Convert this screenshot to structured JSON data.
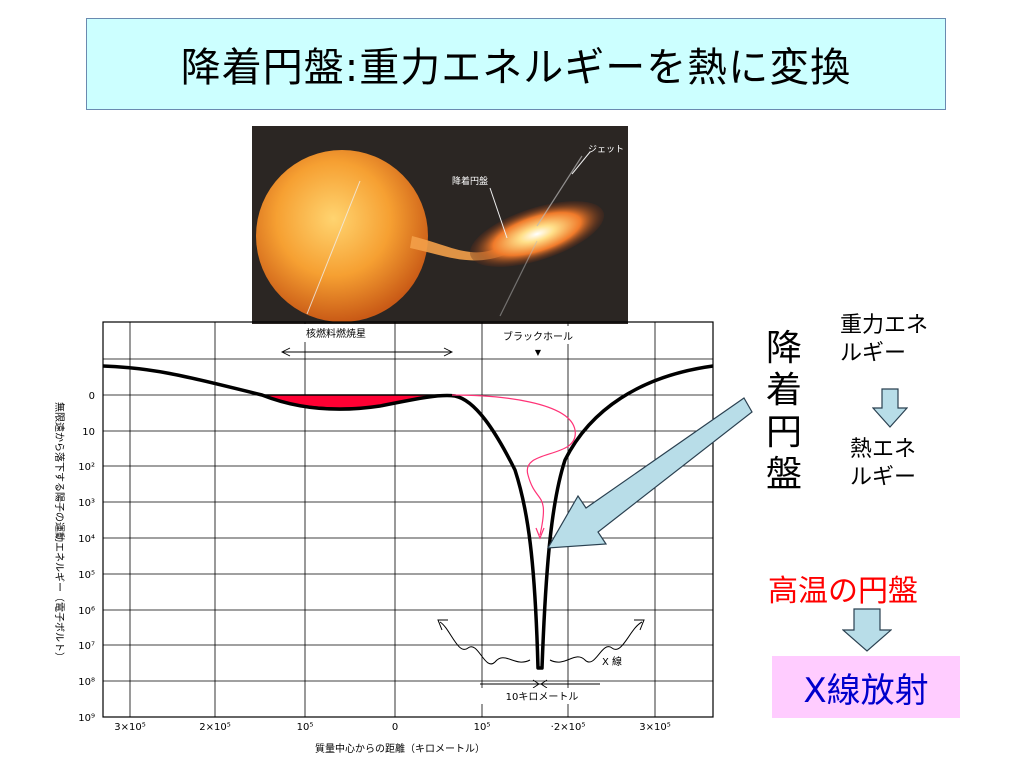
{
  "title": "降着円盤:重力エネルギーを熱に変換",
  "photo": {
    "label_jet": "ジェット",
    "label_disk": "降着円盤"
  },
  "diagram": {
    "label_star": "核燃料燃焼星",
    "label_blackhole": "ブラックホール",
    "y_axis_label": "無限遠から落下する陽子の運動エネルギー（電子ボルト）",
    "x_axis_label": "質量中心からの距離（キロメートル）",
    "y_ticks": [
      "0",
      "10",
      "10²",
      "10³",
      "10⁴",
      "10⁵",
      "10⁶",
      "10⁷",
      "10⁸",
      "10⁹"
    ],
    "x_ticks": [
      "3×10⁵",
      "2×10⁵",
      "10⁵",
      "0",
      "10⁵",
      "·2×10⁵",
      "3×10⁵"
    ],
    "label_xray": "X 線",
    "label_10km": "10キロメートル"
  },
  "side": {
    "disk_label": "降着円盤",
    "gravity_energy": "重力エネルギー",
    "heat_energy": "熱エネルギー",
    "hot_disk": "高温の円盤",
    "xray_emission": "X線放射"
  },
  "colors": {
    "title_bg": "#ccffff",
    "curve": "#000000",
    "disk_fill": "#ff0033",
    "pink_path": "#ff3377",
    "hot_text": "#ff0000",
    "xray_bg": "#ffccff",
    "xray_text": "#0000cc",
    "arrow_fill": "#b8dde8"
  }
}
